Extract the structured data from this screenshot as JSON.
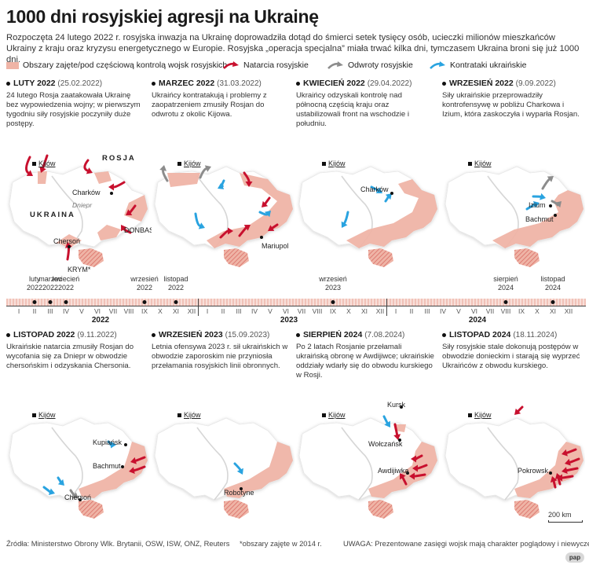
{
  "title": "1000 dni rosyjskiej agresji na Ukrainę",
  "intro": "Rozpoczęta 24 lutego 2022 r. rosyjska inwazja na Ukrainę doprowadziła dotąd do śmierci setek tysięcy osób, ucieczki milionów mieszkańców Ukrainy z kraju oraz kryzysu energetycznego w Europie. Rosyjska „operacja specjalna” miała trwać kilka dni, tymczasem Ukraina broni się już 1000 dni.",
  "colors": {
    "occupied": "#efb4a6",
    "occupied_hatch": "#d96d66",
    "russian_arrow": "#c8102e",
    "retreat_arrow": "#8c8c8c",
    "ukr_arrow": "#29a3e0",
    "land": "#ffffff",
    "river": "#d6d6d6"
  },
  "legend": {
    "occupied": "Obszary zajęte/pod częściową kontrolą wojsk rosyjskich",
    "russian_attack": "Natarcia rosyjskie",
    "russian_retreat": "Odwroty rosyjskie",
    "ukr_counter": "Kontrataki ukraińskie"
  },
  "panels": [
    {
      "id": "p1",
      "heading": "LUTY 2022",
      "date": "(25.02.2022)",
      "desc": "24 lutego Rosja zaatakowała Ukrainę bez wypowiedzenia wojny; w pierwszym tygodniu siły rosyjskie poczyniły duże postępy.",
      "capital": "Kijów",
      "labels": {
        "russia": "ROSJA",
        "ukraine": "UKRAINA",
        "kharkiv": "Charków",
        "river": "Dniepr",
        "donbas": "DONBAS*",
        "kherson": "Chersoń",
        "crimea": "KRYM*"
      },
      "arrows": {
        "red": 7,
        "grey": 0,
        "blue": 0
      }
    },
    {
      "id": "p2",
      "heading": "MARZEC 2022",
      "date": "(31.03.2022)",
      "desc": "Ukraińcy kontratakują i problemy z zaopatrzeniem zmusiły Rosjan do odwrotu z okolic Kijowa.",
      "capital": "Kijów",
      "labels": {
        "mariupol": "Mariupol"
      },
      "arrows": {
        "red": 5,
        "grey": 2,
        "blue": 3
      }
    },
    {
      "id": "p3",
      "heading": "KWIECIEŃ 2022",
      "date": "(29.04.2022)",
      "desc": "Ukraińcy odzyskali kontrolę nad północną częścią kraju oraz ustabilizowali front na wschodzie i południu.",
      "capital": "Kijów",
      "labels": {
        "kharkiv": "Charków"
      },
      "arrows": {
        "red": 0,
        "grey": 0,
        "blue": 3
      }
    },
    {
      "id": "p4",
      "heading": "WRZESIEŃ 2022",
      "date": "(9.09.2022)",
      "desc": "Siły ukraińskie przeprowadziły kontrofensywę w pobliżu Charkowa i Izium, która zaskoczyła i wyparła Rosjan.",
      "capital": "Kijów",
      "labels": {
        "izium": "Izium",
        "bakhmut": "Bachmut"
      },
      "arrows": {
        "red": 0,
        "grey": 2,
        "blue": 2
      }
    },
    {
      "id": "p5",
      "heading": "LISTOPAD 2022",
      "date": "(9.11.2022)",
      "desc": "Ukraińskie natarcia zmusiły Rosjan do wycofania się za Dniepr w obwodzie chersońskim i odzyskania Chersonia.",
      "capital": "Kijów",
      "labels": {
        "kupiansk": "Kupiańsk",
        "bakhmut": "Bachmut",
        "kherson": "Chersoń"
      },
      "arrows": {
        "red": 2,
        "grey": 1,
        "blue": 3
      }
    },
    {
      "id": "p6",
      "heading": "WRZESIEŃ 2023",
      "date": "(15.09.2023)",
      "desc": "Letnia ofensywa 2023 r. sił ukraińskich w obwodzie zaporoskim nie przyniosła przełamania rosyjskich linii obronnych.",
      "capital": "Kijów",
      "labels": {
        "robotyne": "Robotyne"
      },
      "arrows": {
        "red": 0,
        "grey": 0,
        "blue": 1
      }
    },
    {
      "id": "p7",
      "heading": "SIERPIEŃ 2024",
      "date": "(7.08.2024)",
      "desc": "Po 2 latach Rosjanie przełamali ukraińską obronę w Awdijiwce; ukraińskie oddziały wdarły się do obwodu kurskiego w Rosji.",
      "capital": "Kijów",
      "labels": {
        "kursk": "Kursk",
        "vovchansk": "Wołczańsk",
        "avdiivka": "Awdijiwka"
      },
      "arrows": {
        "red": 5,
        "grey": 0,
        "blue": 1
      }
    },
    {
      "id": "p8",
      "heading": "LISTOPAD 2024",
      "date": "(18.11.2024)",
      "desc": "Siły rosyjskie stale dokonują postępów w obwodzie donieckim i starają się wyprzeć Ukraińców z obwodu kurskiego.",
      "capital": "Kijów",
      "labels": {
        "pokrovsk": "Pokrowsk"
      },
      "arrows": {
        "red": 6,
        "grey": 0,
        "blue": 0
      }
    }
  ],
  "timeline": {
    "months": [
      "I",
      "II",
      "III",
      "IV",
      "V",
      "VI",
      "VII",
      "VIII",
      "IX",
      "X",
      "XI",
      "XII"
    ],
    "years": [
      "2022",
      "2023",
      "2024"
    ],
    "events": [
      {
        "label": "luty\n2022",
        "year_index": 0,
        "month": 2
      },
      {
        "label": "marzec\n2022",
        "year_index": 0,
        "month": 3
      },
      {
        "label": "kwiecień\n2022",
        "year_index": 0,
        "month": 4
      },
      {
        "label": "wrzesień\n2022",
        "year_index": 0,
        "month": 9
      },
      {
        "label": "listopad\n2022",
        "year_index": 0,
        "month": 11
      },
      {
        "label": "wrzesień\n2023",
        "year_index": 1,
        "month": 9
      },
      {
        "label": "sierpień\n2024",
        "year_index": 2,
        "month": 8
      },
      {
        "label": "listopad\n2024",
        "year_index": 2,
        "month": 11
      }
    ]
  },
  "scale": "200 km",
  "footer": {
    "sources": "Źródła: Ministerstwo Obrony Wlk. Brytanii, OSW, ISW, ONZ, Reuters",
    "note": "*obszary zajęte w 2014 r.",
    "warning": "UWAGA: Prezentowane zasięgi wojsk mają charakter poglądowy i niewyczerpujący",
    "logo": "pap"
  }
}
